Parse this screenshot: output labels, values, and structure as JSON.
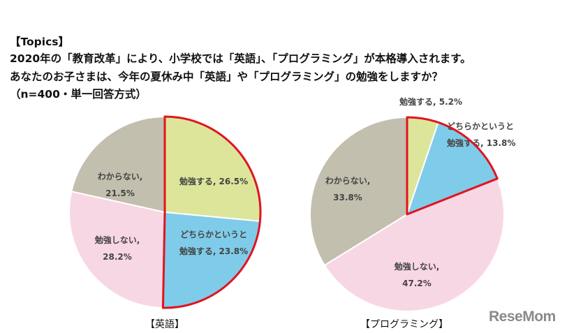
{
  "header": {
    "topics": "【Topics】",
    "line1": "2020年の「教育改革」により、小学校では「英語」、「プログラミング」が本格導入されます。",
    "line2": "あなたのお子さまは、今年の夏休み中「英語」や「プログラミング」の勉強をしますか？",
    "line3": "（n=400・単一回答方式）"
  },
  "logo": "ReseMom",
  "colors": {
    "study": "#dde59a",
    "maybe": "#7fcbea",
    "no": "#f8d7e5",
    "unknown": "#c3bfae",
    "highlight": "#e0141e"
  },
  "chart_data": [
    {
      "type": "pie",
      "title": "【英語】",
      "slices": [
        {
          "label1": "勉強する, 26.5%",
          "label2": "",
          "value": 26.5,
          "key": "study"
        },
        {
          "label1": "どちらかというと",
          "label2": "勉強する, 23.8%",
          "value": 23.8,
          "key": "maybe"
        },
        {
          "label1": "勉強しない,",
          "label2": "28.2%",
          "value": 28.2,
          "key": "no"
        },
        {
          "label1": "わからない,",
          "label2": "21.5%",
          "value": 21.5,
          "key": "unknown"
        }
      ],
      "highlighted": [
        "study",
        "maybe"
      ]
    },
    {
      "type": "pie",
      "title": "【プログラミング】",
      "slices": [
        {
          "label1": "勉強する, 5.2%",
          "label2": "",
          "value": 5.2,
          "key": "study"
        },
        {
          "label1": "どちらかというと",
          "label2": "勉強する, 13.8%",
          "value": 13.8,
          "key": "maybe"
        },
        {
          "label1": "勉強しない,",
          "label2": "47.2%",
          "value": 47.2,
          "key": "no"
        },
        {
          "label1": "わからない,",
          "label2": "33.8%",
          "value": 33.8,
          "key": "unknown"
        }
      ],
      "highlighted": [
        "study",
        "maybe"
      ]
    }
  ]
}
